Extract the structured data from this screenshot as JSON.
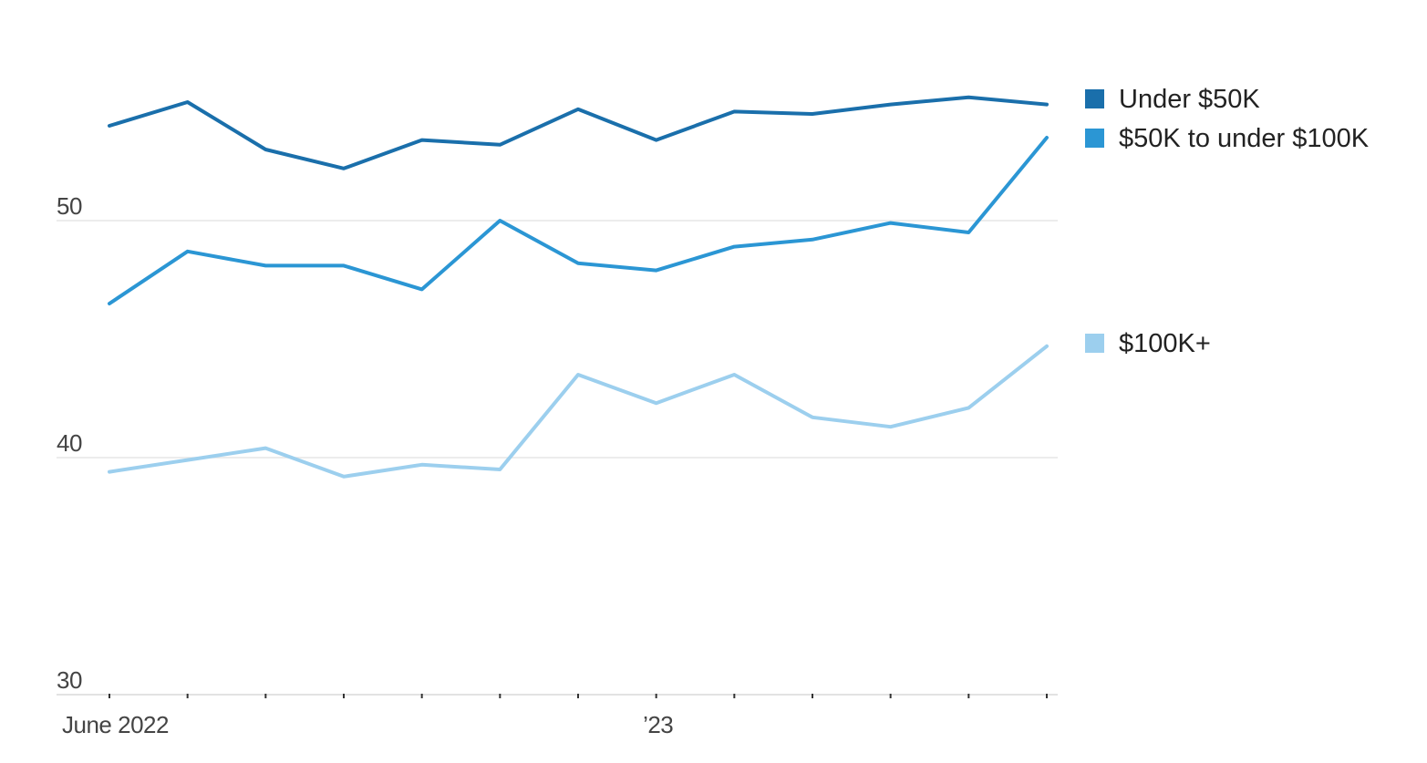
{
  "chart_data": {
    "type": "line",
    "x": [
      "2022-06",
      "2022-07",
      "2022-08",
      "2022-09",
      "2022-10",
      "2022-11",
      "2022-12",
      "2023-01",
      "2023-02",
      "2023-03",
      "2023-04",
      "2023-05",
      "2023-06"
    ],
    "x_tick_labels": [
      {
        "x": "2022-06",
        "label": "June 2022"
      },
      {
        "x": "2023-01",
        "label": "’23"
      }
    ],
    "y_ticks": [
      30,
      40,
      50
    ],
    "y_tick_labels": [
      "30",
      "40",
      "50"
    ],
    "ylim": [
      30,
      58
    ],
    "grid": true,
    "legend_position": "right",
    "series": [
      {
        "name": "Under $50K",
        "color": "#1a6fab",
        "values": [
          54.0,
          55.0,
          53.0,
          52.2,
          53.4,
          53.2,
          54.7,
          53.4,
          54.6,
          54.5,
          54.9,
          55.2,
          54.9
        ]
      },
      {
        "name": "$50K to under $100K",
        "color": "#2b96d4",
        "values": [
          46.5,
          48.7,
          48.1,
          48.1,
          47.1,
          50.0,
          48.2,
          47.9,
          48.9,
          49.2,
          49.9,
          49.5,
          53.5
        ]
      },
      {
        "name": "$100K+",
        "color": "#9ccfee",
        "values": [
          39.4,
          39.9,
          40.4,
          39.2,
          39.7,
          39.5,
          43.5,
          42.3,
          43.5,
          41.7,
          41.3,
          42.1,
          44.7
        ]
      }
    ]
  }
}
